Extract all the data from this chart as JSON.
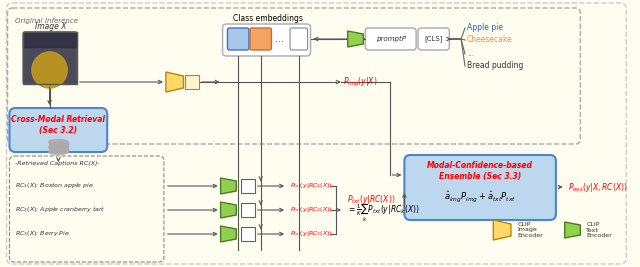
{
  "bg_color": "#fffdf0",
  "original_inference_label": "Original Inference",
  "class_embeddings_label": "Class embeddings",
  "image_label": "Image X",
  "apple_pie": "Apple pie",
  "cheesecake": "Cheesecake",
  "ellipsis": "...",
  "bread_pudding": "Bread pudding",
  "cross_modal_label1": "Cross-Modal Retrieval",
  "cross_modal_label2": "(Sec 3.2)",
  "ensemble_label1": "Modal-Confidence-based",
  "ensemble_label2": "Ensemble (Sec 3.3)",
  "ensemble_formula": "$\\hat{a}_{img}P_{img}+\\hat{a}_{txt}P_{txt}$",
  "retrieved_captions_label": "-Retrieved Captions RC(X)-",
  "rc1": "$RC_1(X)$: Boston apple pie",
  "rc2": "$RC_2(X)$: Apple cranberry tart",
  "rc3": "$RC_3(X)$: Berry Pie",
  "p_img": "$P_{img}(y|X)$",
  "p_txt_rc1": "$P_{txt}(y|RC_1(X))$",
  "p_txt_rc2": "$P_{txt}(y|RC_2(X))$",
  "p_txt_rc3": "$P_{txt}(y|RC_3(X))$",
  "p_txt_rc_label": "$P_{txt}(y|RC(X))$",
  "p_ens": "$P_{ens}(y|X,RC(X))$",
  "avg_formula": "$=\\frac{1}{K}\\sum_{k} P_{txt}(y|RC_k(X))$",
  "clip_image_label": "CLIP\nImage\nEncoder",
  "clip_text_label": "CLIP\nText\nEncoder",
  "prompt_label": "promptP",
  "cls_label": "[CLS]",
  "color_blue_emb": "#6baed6",
  "color_orange_emb": "#f4a460",
  "color_img_encoder": "#ffd966",
  "color_txt_encoder": "#92d050",
  "color_retrieval_box": "#bdd7ee",
  "color_ensemble_box": "#bdd7ee",
  "arrow_color": "#555555"
}
